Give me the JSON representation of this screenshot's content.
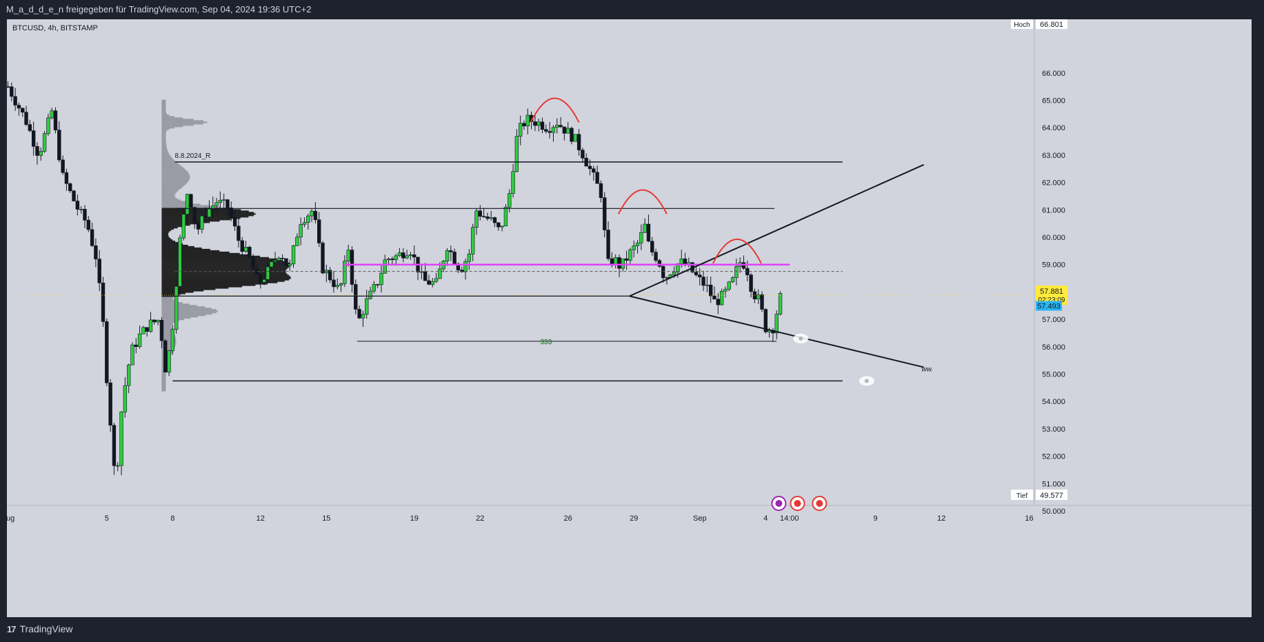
{
  "header": {
    "share_text": "M_a_d_d_e_n freigegeben für TradingView.com, Sep 04, 2024 19:36 UTC+2",
    "symbol": "BTCUSD, 4h, BITSTAMP"
  },
  "footer": {
    "brand": "TradingView",
    "logo": "17"
  },
  "colors": {
    "up": "#2ecc40",
    "down": "#131722",
    "magenta": "#e040fb",
    "red": "#e53935",
    "price_tag": "#ffeb3b",
    "cyan_tag": "#29b6f6",
    "dollar": "#2e7d32"
  },
  "chart_data": {
    "type": "candlestick",
    "symbol": "BTCUSD",
    "timeframe": "4h",
    "exchange": "BITSTAMP",
    "y_axis": {
      "ticks": [
        "66.000",
        "65.000",
        "64.000",
        "63.000",
        "62.000",
        "61.000",
        "60.000",
        "59.000",
        "57.000",
        "56.000",
        "55.000",
        "54.000",
        "53.000",
        "52.000",
        "51.000",
        "50.000"
      ],
      "tick_values": [
        66000,
        65000,
        64000,
        63000,
        62000,
        61000,
        60000,
        59000,
        57000,
        56000,
        55000,
        54000,
        53000,
        52000,
        51000,
        50000
      ],
      "hoch_label": "Hoch",
      "hoch_value": "66.801",
      "tief_label": "Tief",
      "tief_value": "49.577",
      "last_price": "57.881",
      "countdown": "02:23:09",
      "second_price": "57.493"
    },
    "x_axis": {
      "labels": [
        {
          "t": "Aug",
          "d": 0
        },
        {
          "t": "5",
          "d": 4.5
        },
        {
          "t": "8",
          "d": 7.5
        },
        {
          "t": "12",
          "d": 11.5
        },
        {
          "t": "15",
          "d": 14.5
        },
        {
          "t": "19",
          "d": 18.5
        },
        {
          "t": "22",
          "d": 21.5
        },
        {
          "t": "26",
          "d": 25.5
        },
        {
          "t": "29",
          "d": 28.5
        },
        {
          "t": "Sep",
          "d": 31.5
        },
        {
          "t": "4",
          "d": 34.5
        },
        {
          "t": "14:00",
          "d": 35.58
        },
        {
          "t": "9",
          "d": 39.5
        },
        {
          "t": "12",
          "d": 42.5
        },
        {
          "t": "16",
          "d": 46.5
        }
      ]
    },
    "close_path": [
      [
        0.0,
        65500
      ],
      [
        0.8,
        64300
      ],
      [
        1.4,
        63000
      ],
      [
        2.0,
        64600
      ],
      [
        2.5,
        62200
      ],
      [
        3.2,
        61000
      ],
      [
        3.6,
        60500
      ],
      [
        4.0,
        59300
      ],
      [
        4.3,
        57200
      ],
      [
        4.55,
        54300
      ],
      [
        4.75,
        52500
      ],
      [
        4.9,
        50800
      ],
      [
        5.2,
        54000
      ],
      [
        5.6,
        55800
      ],
      [
        6.0,
        56400
      ],
      [
        6.4,
        56800
      ],
      [
        6.9,
        57000
      ],
      [
        7.2,
        55000
      ],
      [
        7.5,
        56800
      ],
      [
        7.8,
        59700
      ],
      [
        8.2,
        61800
      ],
      [
        8.6,
        60200
      ],
      [
        9.0,
        60900
      ],
      [
        9.5,
        61300
      ],
      [
        10.0,
        61100
      ],
      [
        10.5,
        59900
      ],
      [
        11.0,
        59200
      ],
      [
        11.4,
        58300
      ],
      [
        11.8,
        58700
      ],
      [
        12.4,
        59500
      ],
      [
        12.8,
        58800
      ],
      [
        13.3,
        60600
      ],
      [
        13.9,
        61000
      ],
      [
        14.3,
        58900
      ],
      [
        14.7,
        58500
      ],
      [
        15.1,
        58000
      ],
      [
        15.5,
        59600
      ],
      [
        15.9,
        56800
      ],
      [
        16.3,
        57600
      ],
      [
        16.8,
        58300
      ],
      [
        17.2,
        59200
      ],
      [
        17.7,
        59300
      ],
      [
        18.3,
        59600
      ],
      [
        18.9,
        58400
      ],
      [
        19.5,
        58300
      ],
      [
        20.0,
        59700
      ],
      [
        20.6,
        58800
      ],
      [
        21.0,
        59400
      ],
      [
        21.3,
        61000
      ],
      [
        21.6,
        60800
      ],
      [
        22.0,
        60600
      ],
      [
        22.4,
        60200
      ],
      [
        22.8,
        61400
      ],
      [
        23.2,
        63800
      ],
      [
        23.6,
        64300
      ],
      [
        24.1,
        64200
      ],
      [
        24.6,
        64000
      ],
      [
        25.0,
        64200
      ],
      [
        25.4,
        63900
      ],
      [
        25.8,
        63600
      ],
      [
        26.2,
        63000
      ],
      [
        26.6,
        62300
      ],
      [
        27.0,
        61600
      ],
      [
        27.3,
        59000
      ],
      [
        27.6,
        59200
      ],
      [
        27.9,
        58900
      ],
      [
        28.3,
        59400
      ],
      [
        28.7,
        59800
      ],
      [
        29.0,
        60400
      ],
      [
        29.2,
        59600
      ],
      [
        29.6,
        59200
      ],
      [
        29.9,
        58500
      ],
      [
        30.2,
        58800
      ],
      [
        30.6,
        59100
      ],
      [
        31.0,
        58900
      ],
      [
        31.4,
        58500
      ],
      [
        31.8,
        58200
      ],
      [
        32.2,
        57600
      ],
      [
        32.6,
        57900
      ],
      [
        33.0,
        58400
      ],
      [
        33.3,
        59100
      ],
      [
        33.6,
        59000
      ],
      [
        33.9,
        58000
      ],
      [
        34.2,
        57700
      ],
      [
        34.5,
        56700
      ],
      [
        34.8,
        56600
      ],
      [
        35.2,
        57900
      ]
    ],
    "volume_profile_note": "",
    "horizontal_levels": [
      {
        "name": "level-62750",
        "price": 62750,
        "from": 7.6,
        "to": 38.0,
        "color": "#131722",
        "width": 1.5
      },
      {
        "name": "level-61050",
        "price": 61050,
        "from": 7.6,
        "to": 34.9,
        "color": "#131722",
        "width": 1.2
      },
      {
        "name": "magenta-level",
        "price": 59000,
        "from": 15.3,
        "to": 35.6,
        "color": "#e040fb",
        "width": 2.5
      },
      {
        "name": "dashed-level",
        "price": 58750,
        "from": 7.6,
        "to": 38.0,
        "color": "#555555",
        "width": 1,
        "dash": true
      },
      {
        "name": "level-57850",
        "price": 57850,
        "from": 7.6,
        "to": 28.3,
        "color": "#131722",
        "width": 1.2
      },
      {
        "name": "level-56200",
        "price": 56200,
        "from": 15.9,
        "to": 35.0,
        "color": "#131722",
        "width": 1
      },
      {
        "name": "level-54750",
        "price": 54750,
        "from": 7.5,
        "to": 38.0,
        "color": "#131722",
        "width": 1.5
      }
    ],
    "annotations": {
      "date_label": "8.8.2024_R",
      "dollar_label": "$$$",
      "ww_label": "ww."
    },
    "trend_lines": [
      {
        "name": "trend-line-upper",
        "from": [
          28.3,
          57850
        ],
        "to": [
          41.7,
          62650
        ]
      },
      {
        "name": "trend-line-lower",
        "from": [
          28.3,
          57850
        ],
        "to": [
          41.7,
          55250
        ]
      }
    ],
    "arcs": [
      {
        "name": "arc-1",
        "center": [
          24.9,
          64950
        ],
        "half_width": 1.1
      },
      {
        "name": "arc-2",
        "center": [
          28.9,
          61600
        ],
        "half_width": 1.1
      },
      {
        "name": "arc-3",
        "center": [
          33.2,
          59800
        ],
        "half_width": 1.1
      }
    ]
  }
}
